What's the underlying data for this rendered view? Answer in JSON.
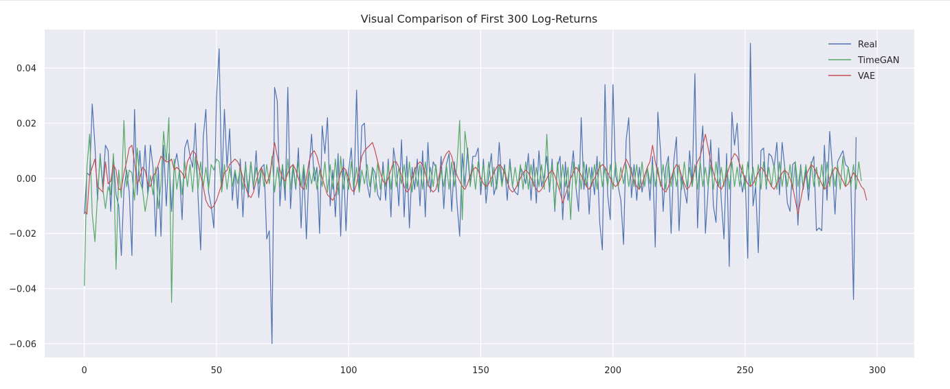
{
  "chart_data": {
    "type": "line",
    "title": "Visual Comparison of First 300 Log-Returns",
    "xlabel": "",
    "ylabel": "",
    "xlim": [
      -15,
      314
    ],
    "ylim": [
      -0.065,
      0.054
    ],
    "x_ticks": [
      0,
      50,
      100,
      150,
      200,
      250,
      300
    ],
    "x_tick_labels": [
      "0",
      "50",
      "100",
      "150",
      "200",
      "250",
      "300"
    ],
    "y_ticks": [
      0.04,
      0.02,
      0.0,
      -0.02,
      -0.04,
      -0.06
    ],
    "y_tick_labels": [
      "0.04",
      "0.02",
      "0.00",
      "−0.02",
      "−0.04",
      "−0.06"
    ],
    "grid": true,
    "legend_position": "top-right",
    "x": "0..299 (step 1)",
    "series": [
      {
        "name": "Real",
        "color": "#4c72b0",
        "values": [
          -0.013,
          0.002,
          0.001,
          0.027,
          0.012,
          -0.008,
          0.009,
          -0.003,
          0.012,
          0.01,
          -0.012,
          0.008,
          -0.006,
          -0.01,
          -0.028,
          -0.004,
          0.003,
          -0.005,
          -0.028,
          0.025,
          -0.006,
          0.01,
          -0.004,
          0.012,
          -0.006,
          0.012,
          0.004,
          -0.021,
          0.004,
          -0.021,
          0.012,
          -0.01,
          0.009,
          -0.012,
          0.004,
          0.009,
          0.002,
          -0.015,
          0.011,
          0.014,
          0.008,
          0.004,
          0.02,
          -0.006,
          -0.026,
          0.015,
          0.025,
          -0.005,
          -0.01,
          -0.018,
          0.029,
          0.047,
          -0.003,
          0.025,
          0.004,
          0.018,
          -0.008,
          0.003,
          -0.011,
          0.007,
          -0.014,
          0.006,
          -0.007,
          0.006,
          -0.004,
          0.01,
          -0.007,
          0.004,
          0.005,
          -0.022,
          -0.019,
          -0.06,
          0.033,
          0.028,
          -0.01,
          0.005,
          -0.008,
          0.033,
          -0.011,
          0.004,
          -0.004,
          0.011,
          -0.018,
          0.004,
          -0.022,
          0.003,
          0.016,
          -0.001,
          0.004,
          -0.02,
          0.019,
          0.009,
          0.022,
          -0.01,
          0.003,
          -0.014,
          0.009,
          -0.021,
          0.007,
          -0.019,
          0.003,
          0.011,
          -0.006,
          0.032,
          -0.005,
          0.019,
          0.02,
          -0.002,
          -0.007,
          0.004,
          0.002,
          -0.006,
          -0.008,
          0.006,
          -0.008,
          0.007,
          -0.014,
          0.011,
          0.004,
          -0.01,
          0.014,
          -0.014,
          0.008,
          -0.018,
          0.004,
          -0.004,
          0.007,
          -0.01,
          0.01,
          -0.014,
          0.013,
          -0.005,
          0.006,
          0.004,
          -0.005,
          0.008,
          -0.011,
          0.005,
          0.009,
          -0.012,
          0.006,
          -0.009,
          -0.021,
          0.009,
          -0.003,
          0.011,
          -0.002,
          0.008,
          0.008,
          0.011,
          -0.006,
          0.007,
          -0.009,
          0.001,
          0.009,
          -0.006,
          -0.002,
          0.013,
          -0.002,
          0.005,
          -0.008,
          0.007,
          -0.003,
          -0.005,
          -0.006,
          0.004,
          0.002,
          -0.002,
          0.009,
          -0.008,
          0.007,
          -0.009,
          0.01,
          -0.003,
          0.001,
          0.008,
          -0.005,
          0.007,
          -0.012,
          0.004,
          0.008,
          -0.015,
          0.006,
          -0.008,
          0.001,
          0.01,
          -0.003,
          -0.012,
          0.022,
          -0.004,
          0.005,
          -0.013,
          0.004,
          -0.006,
          0.008,
          -0.016,
          -0.026,
          0.034,
          -0.006,
          -0.015,
          0.034,
          0.001,
          -0.003,
          -0.008,
          -0.024,
          0.014,
          0.022,
          -0.007,
          0.005,
          -0.008,
          0.004,
          -0.005,
          0.001,
          0.004,
          -0.008,
          0.008,
          -0.025,
          0.024,
          0.01,
          -0.012,
          0.004,
          0.008,
          -0.02,
          0.006,
          0.015,
          -0.019,
          0.001,
          -0.004,
          -0.009,
          0.01,
          -0.002,
          0.038,
          -0.018,
          0.007,
          0.019,
          -0.02,
          -0.004,
          0.014,
          -0.01,
          -0.016,
          0.011,
          -0.008,
          -0.022,
          0.009,
          -0.032,
          0.024,
          0.012,
          0.02,
          0.002,
          -0.005,
          0.001,
          -0.029,
          0.049,
          -0.01,
          -0.003,
          -0.027,
          0.01,
          0.011,
          -0.004,
          0.009,
          0.008,
          0.004,
          0.013,
          -0.006,
          0.013,
          0.004,
          -0.009,
          -0.012,
          0.005,
          0.006,
          -0.017,
          0.005,
          -0.004,
          0.003,
          -0.008,
          0.005,
          0.008,
          -0.019,
          -0.018,
          -0.019,
          0.012,
          -0.008,
          0.017,
          0.004,
          -0.013,
          0.006,
          0.008,
          0.01,
          0.005,
          0.004,
          -0.001,
          -0.044,
          0.015
        ]
      },
      {
        "name": "TimeGAN",
        "color": "#55a868",
        "values": [
          -0.039,
          0.004,
          0.016,
          -0.013,
          -0.023,
          -0.006,
          0.008,
          -0.004,
          -0.011,
          -0.003,
          -0.006,
          0.009,
          -0.033,
          0.003,
          -0.007,
          0.021,
          -0.003,
          0.003,
          0.002,
          -0.008,
          0.011,
          -0.001,
          -0.004,
          -0.012,
          -0.006,
          0.001,
          -0.006,
          0.004,
          -0.011,
          -0.002,
          0.017,
          0.006,
          0.022,
          -0.045,
          0.007,
          -0.004,
          0.003,
          -0.006,
          0.006,
          -0.003,
          0.005,
          -0.005,
          0.008,
          -0.004,
          0.006,
          -0.003,
          0.004,
          -0.004,
          0.005,
          0.003,
          0.007,
          0.006,
          -0.005,
          0.005,
          -0.004,
          0.004,
          -0.003,
          0.003,
          -0.002,
          0.004,
          -0.004,
          0.005,
          -0.004,
          0.006,
          -0.003,
          0.004,
          -0.002,
          0.004,
          -0.003,
          0.005,
          -0.002,
          0.008,
          -0.005,
          0.004,
          -0.003,
          0.005,
          -0.004,
          0.007,
          -0.004,
          0.005,
          -0.003,
          0.006,
          -0.003,
          0.005,
          -0.004,
          0.003,
          -0.002,
          0.004,
          -0.004,
          0.003,
          -0.003,
          0.006,
          -0.005,
          0.005,
          -0.004,
          0.007,
          -0.006,
          0.008,
          -0.004,
          0.003,
          -0.004,
          0.006,
          -0.003,
          0.004,
          -0.005,
          0.003,
          -0.002,
          0.005,
          -0.003,
          0.004,
          -0.005,
          0.006,
          -0.004,
          0.003,
          -0.003,
          0.005,
          -0.004,
          0.006,
          -0.003,
          0.004,
          -0.002,
          0.005,
          -0.004,
          0.006,
          -0.005,
          0.004,
          -0.003,
          0.005,
          -0.004,
          0.006,
          -0.003,
          0.004,
          -0.003,
          0.005,
          -0.004,
          0.003,
          -0.003,
          0.005,
          -0.004,
          0.006,
          -0.003,
          0.005,
          0.021,
          -0.015,
          0.017,
          0.009,
          -0.003,
          0.005,
          -0.004,
          0.006,
          -0.003,
          0.005,
          -0.004,
          0.006,
          -0.003,
          0.004,
          -0.004,
          0.005,
          -0.003,
          0.004,
          -0.002,
          0.005,
          -0.003,
          0.004,
          -0.003,
          0.005,
          -0.004,
          0.006,
          -0.004,
          0.005,
          -0.003,
          0.004,
          -0.003,
          0.005,
          -0.004,
          0.016,
          -0.004,
          0.005,
          -0.011,
          0.006,
          -0.004,
          0.005,
          -0.003,
          0.004,
          -0.015,
          0.006,
          -0.003,
          0.005,
          -0.004,
          0.006,
          -0.003,
          0.004,
          -0.003,
          0.005,
          -0.004,
          0.006,
          -0.003,
          0.004,
          -0.003,
          0.005,
          -0.004,
          0.006,
          -0.003,
          0.004,
          -0.002,
          0.005,
          -0.003,
          0.004,
          -0.003,
          0.005,
          -0.004,
          0.006,
          -0.003,
          0.004,
          -0.002,
          0.005,
          -0.003,
          0.004,
          -0.003,
          0.005,
          -0.004,
          0.006,
          -0.003,
          0.004,
          -0.003,
          0.005,
          -0.004,
          0.006,
          -0.003,
          0.004,
          -0.003,
          0.005,
          -0.004,
          0.006,
          -0.003,
          0.004,
          -0.003,
          0.005,
          -0.004,
          0.006,
          -0.003,
          0.004,
          -0.003,
          0.005,
          -0.004,
          0.006,
          -0.003,
          0.004,
          -0.003,
          0.005,
          -0.004,
          0.006,
          -0.003,
          0.004,
          -0.003,
          0.005,
          -0.004,
          0.006,
          -0.003,
          0.004,
          -0.003,
          0.005,
          -0.004,
          0.006,
          -0.003,
          0.004,
          -0.003,
          0.005,
          -0.004,
          0.006,
          -0.003,
          0.004,
          -0.003,
          0.005,
          -0.004,
          0.006,
          -0.003,
          0.004,
          -0.003,
          0.005,
          -0.004,
          0.006,
          -0.003,
          0.004,
          -0.003,
          0.005,
          -0.004,
          0.008,
          -0.003,
          0.004,
          -0.003,
          0.005,
          -0.004,
          0.006,
          -0.001
        ]
      },
      {
        "name": "VAE",
        "color": "#c44e52",
        "values": [
          -0.012,
          -0.013,
          0.001,
          0.004,
          0.007,
          -0.003,
          -0.004,
          -0.005,
          0.006,
          -0.002,
          -0.001,
          0.005,
          0.003,
          -0.004,
          -0.004,
          0.002,
          0.006,
          0.011,
          0.012,
          0.006,
          -0.002,
          0.0,
          0.004,
          0.003,
          -0.002,
          -0.003,
          0.001,
          0.002,
          0.005,
          0.008,
          0.007,
          0.006,
          0.006,
          0.007,
          0.003,
          0.004,
          0.003,
          0.002,
          0.0,
          0.006,
          0.008,
          0.01,
          0.009,
          0.005,
          0.001,
          -0.003,
          -0.008,
          -0.01,
          -0.011,
          -0.01,
          -0.008,
          -0.005,
          -0.002,
          0.002,
          0.003,
          0.005,
          0.006,
          0.007,
          0.006,
          0.004,
          0.0,
          -0.003,
          -0.006,
          -0.007,
          -0.005,
          -0.001,
          0.002,
          0.004,
          0.001,
          -0.002,
          0.001,
          0.006,
          0.013,
          0.008,
          0.003,
          0.0,
          -0.001,
          0.002,
          0.004,
          0.005,
          0.003,
          0.0,
          -0.003,
          -0.004,
          0.0,
          0.006,
          0.009,
          0.01,
          0.008,
          0.004,
          0.0,
          -0.003,
          -0.006,
          -0.007,
          -0.008,
          -0.006,
          -0.002,
          0.002,
          0.004,
          0.003,
          0.0,
          -0.004,
          -0.005,
          -0.002,
          0.003,
          0.008,
          0.01,
          0.011,
          0.012,
          0.013,
          0.01,
          0.006,
          0.002,
          -0.001,
          -0.002,
          0.0,
          0.003,
          0.006,
          0.006,
          0.004,
          0.001,
          -0.003,
          -0.005,
          -0.004,
          0.0,
          0.003,
          0.005,
          0.006,
          0.005,
          0.002,
          -0.002,
          -0.004,
          -0.005,
          -0.004,
          0.0,
          0.004,
          0.007,
          0.009,
          0.01,
          0.008,
          0.004,
          0.001,
          -0.001,
          -0.003,
          -0.004,
          -0.002,
          0.001,
          0.003,
          0.004,
          0.003,
          0.0,
          -0.002,
          -0.003,
          -0.002,
          0.0,
          0.002,
          0.004,
          0.005,
          0.004,
          0.002,
          -0.001,
          -0.004,
          -0.005,
          -0.004,
          -0.002,
          0.0,
          0.002,
          0.003,
          0.002,
          0.0,
          -0.002,
          -0.004,
          -0.005,
          -0.004,
          -0.002,
          0.0,
          0.002,
          0.003,
          0.001,
          -0.002,
          -0.005,
          -0.009,
          -0.006,
          -0.003,
          0.0,
          0.002,
          0.004,
          0.003,
          0.001,
          -0.001,
          -0.003,
          -0.004,
          -0.002,
          0.0,
          0.002,
          0.004,
          0.005,
          0.004,
          0.002,
          0.0,
          -0.002,
          -0.003,
          -0.002,
          0.0,
          0.004,
          0.007,
          0.005,
          0.002,
          -0.001,
          -0.003,
          -0.004,
          -0.002,
          0.001,
          0.004,
          0.006,
          0.012,
          0.006,
          0.002,
          -0.002,
          -0.004,
          -0.005,
          -0.003,
          0.0,
          0.003,
          0.005,
          0.004,
          0.001,
          -0.002,
          -0.004,
          -0.003,
          0.0,
          0.003,
          0.006,
          0.008,
          0.012,
          0.016,
          0.011,
          0.006,
          0.002,
          -0.001,
          -0.003,
          -0.004,
          -0.002,
          0.001,
          0.004,
          0.007,
          0.009,
          0.008,
          0.005,
          0.002,
          0.0,
          -0.002,
          -0.003,
          -0.002,
          0.0,
          0.002,
          0.004,
          0.003,
          0.001,
          -0.001,
          -0.003,
          -0.004,
          -0.002,
          0.0,
          0.002,
          0.003,
          0.002,
          0.0,
          -0.003,
          -0.008,
          -0.013,
          -0.008,
          -0.003,
          0.001,
          0.003,
          0.005,
          0.004,
          0.002,
          0.0,
          -0.002,
          -0.004,
          -0.003,
          0.0,
          0.002,
          0.004,
          0.003,
          0.001,
          -0.001,
          -0.003,
          -0.002,
          0.0,
          0.002,
          0.001,
          -0.001,
          -0.003,
          -0.004,
          -0.008
        ]
      }
    ]
  }
}
